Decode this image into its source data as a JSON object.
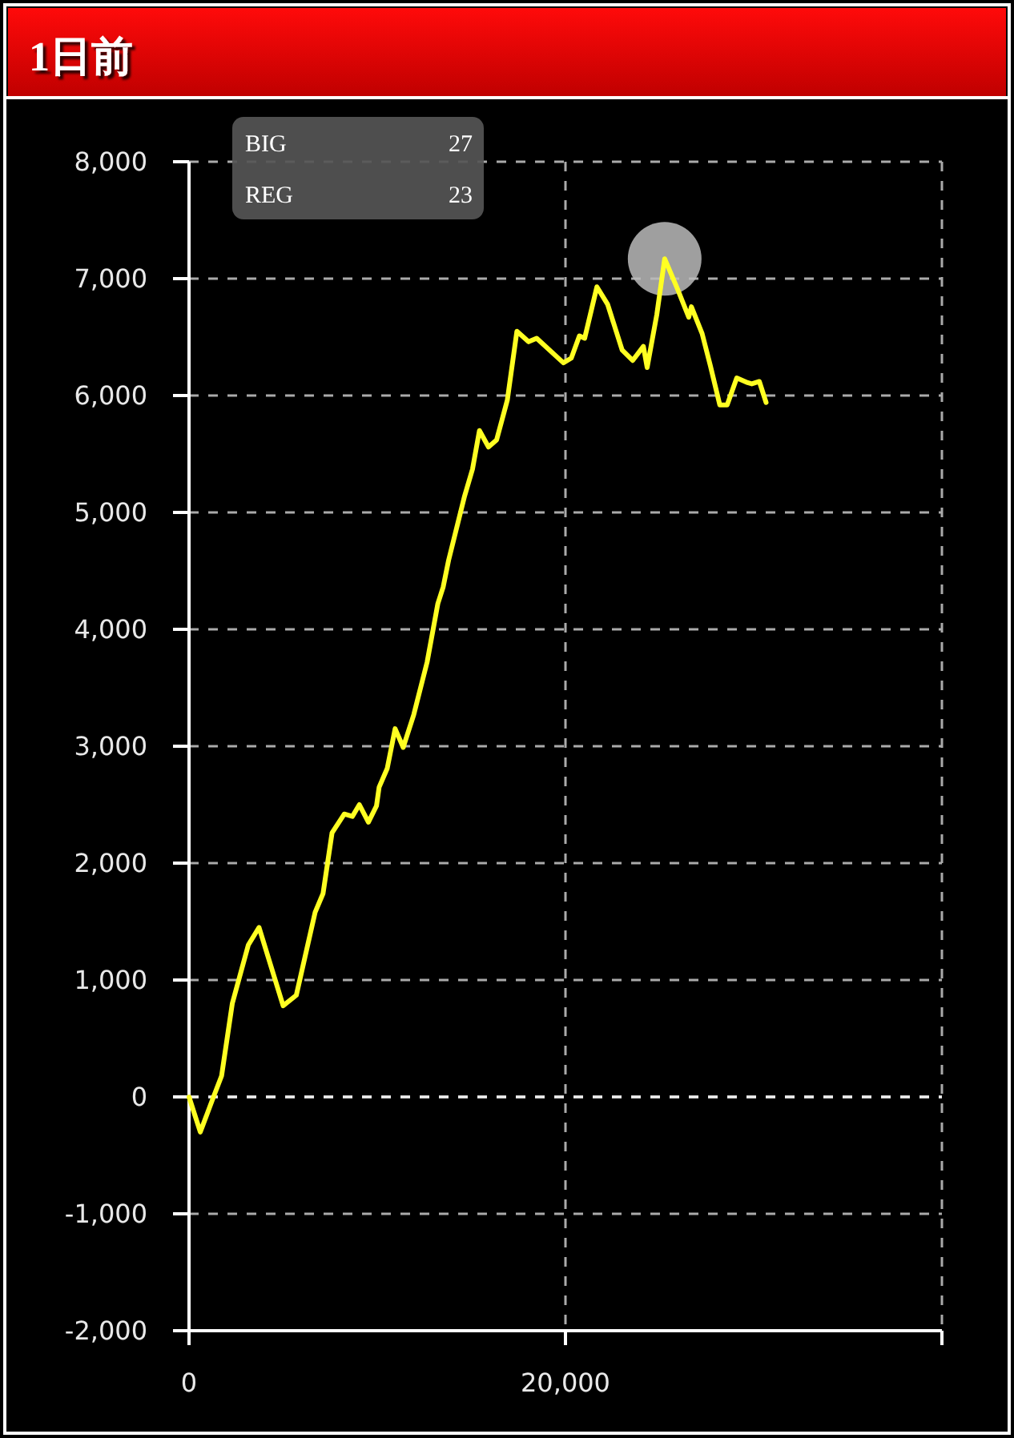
{
  "chart_data": {
    "type": "line",
    "title": "1日前",
    "xlim": [
      0,
      40000
    ],
    "xticks": [
      0,
      {
        "value": 20000,
        "label": "20,000"
      },
      {
        "value": 40000,
        "label": null
      }
    ],
    "ylim": [
      -2000,
      8000
    ],
    "yticks": [
      {
        "value": -2000,
        "label": "-2,000"
      },
      {
        "value": -1000,
        "label": "-1,000"
      },
      0,
      {
        "value": 1000,
        "label": "1,000"
      },
      {
        "value": 2000,
        "label": "2,000"
      },
      {
        "value": 3000,
        "label": "3,000"
      },
      {
        "value": 4000,
        "label": "4,000"
      },
      {
        "value": 5000,
        "label": "5,000"
      },
      {
        "value": 6000,
        "label": "6,000"
      },
      {
        "value": 7000,
        "label": "7,000"
      },
      {
        "value": 8000,
        "label": "8,000"
      }
    ],
    "grid": true,
    "ref_lines": [
      {
        "axis": "y",
        "value": 0,
        "color": "#eeeeee",
        "line_style": "dashed"
      }
    ],
    "annotations": [
      "BIG 27",
      "REG 23"
    ],
    "series": [
      {
        "type": "scatter",
        "color": "#bbbbbb",
        "marker": "circle",
        "x": [
          25270
        ],
        "values": [
          7170
        ]
      },
      {
        "color": "#ffff22",
        "x": [
          0,
          600,
          1300,
          1730,
          2300,
          3150,
          3720,
          5000,
          5700,
          6700,
          7120,
          7600,
          8250,
          8680,
          9050,
          9530,
          9960,
          10100,
          10530,
          10950,
          11380,
          11940,
          12650,
          13220,
          13500,
          13790,
          14640,
          15060,
          15430,
          15910,
          16340,
          16910,
          17420,
          18040,
          18470,
          19890,
          20310,
          20740,
          21020,
          21670,
          22240,
          23010,
          23570,
          24140,
          24340,
          24850,
          25270,
          25930,
          26550,
          26690,
          27260,
          27690,
          28200,
          28590,
          29100,
          29680,
          29900,
          30300,
          30660
        ],
        "values": [
          0,
          -300,
          0,
          180,
          800,
          1300,
          1450,
          780,
          870,
          1580,
          1740,
          2260,
          2420,
          2400,
          2500,
          2350,
          2490,
          2650,
          2810,
          3150,
          2990,
          3270,
          3720,
          4220,
          4360,
          4590,
          5140,
          5370,
          5700,
          5560,
          5620,
          5960,
          6550,
          6460,
          6490,
          6280,
          6320,
          6510,
          6490,
          6930,
          6780,
          6390,
          6300,
          6420,
          6240,
          6690,
          7170,
          6920,
          6670,
          6760,
          6530,
          6260,
          5920,
          5920,
          6150,
          6110,
          6100,
          6120,
          5940
        ]
      }
    ]
  }
}
